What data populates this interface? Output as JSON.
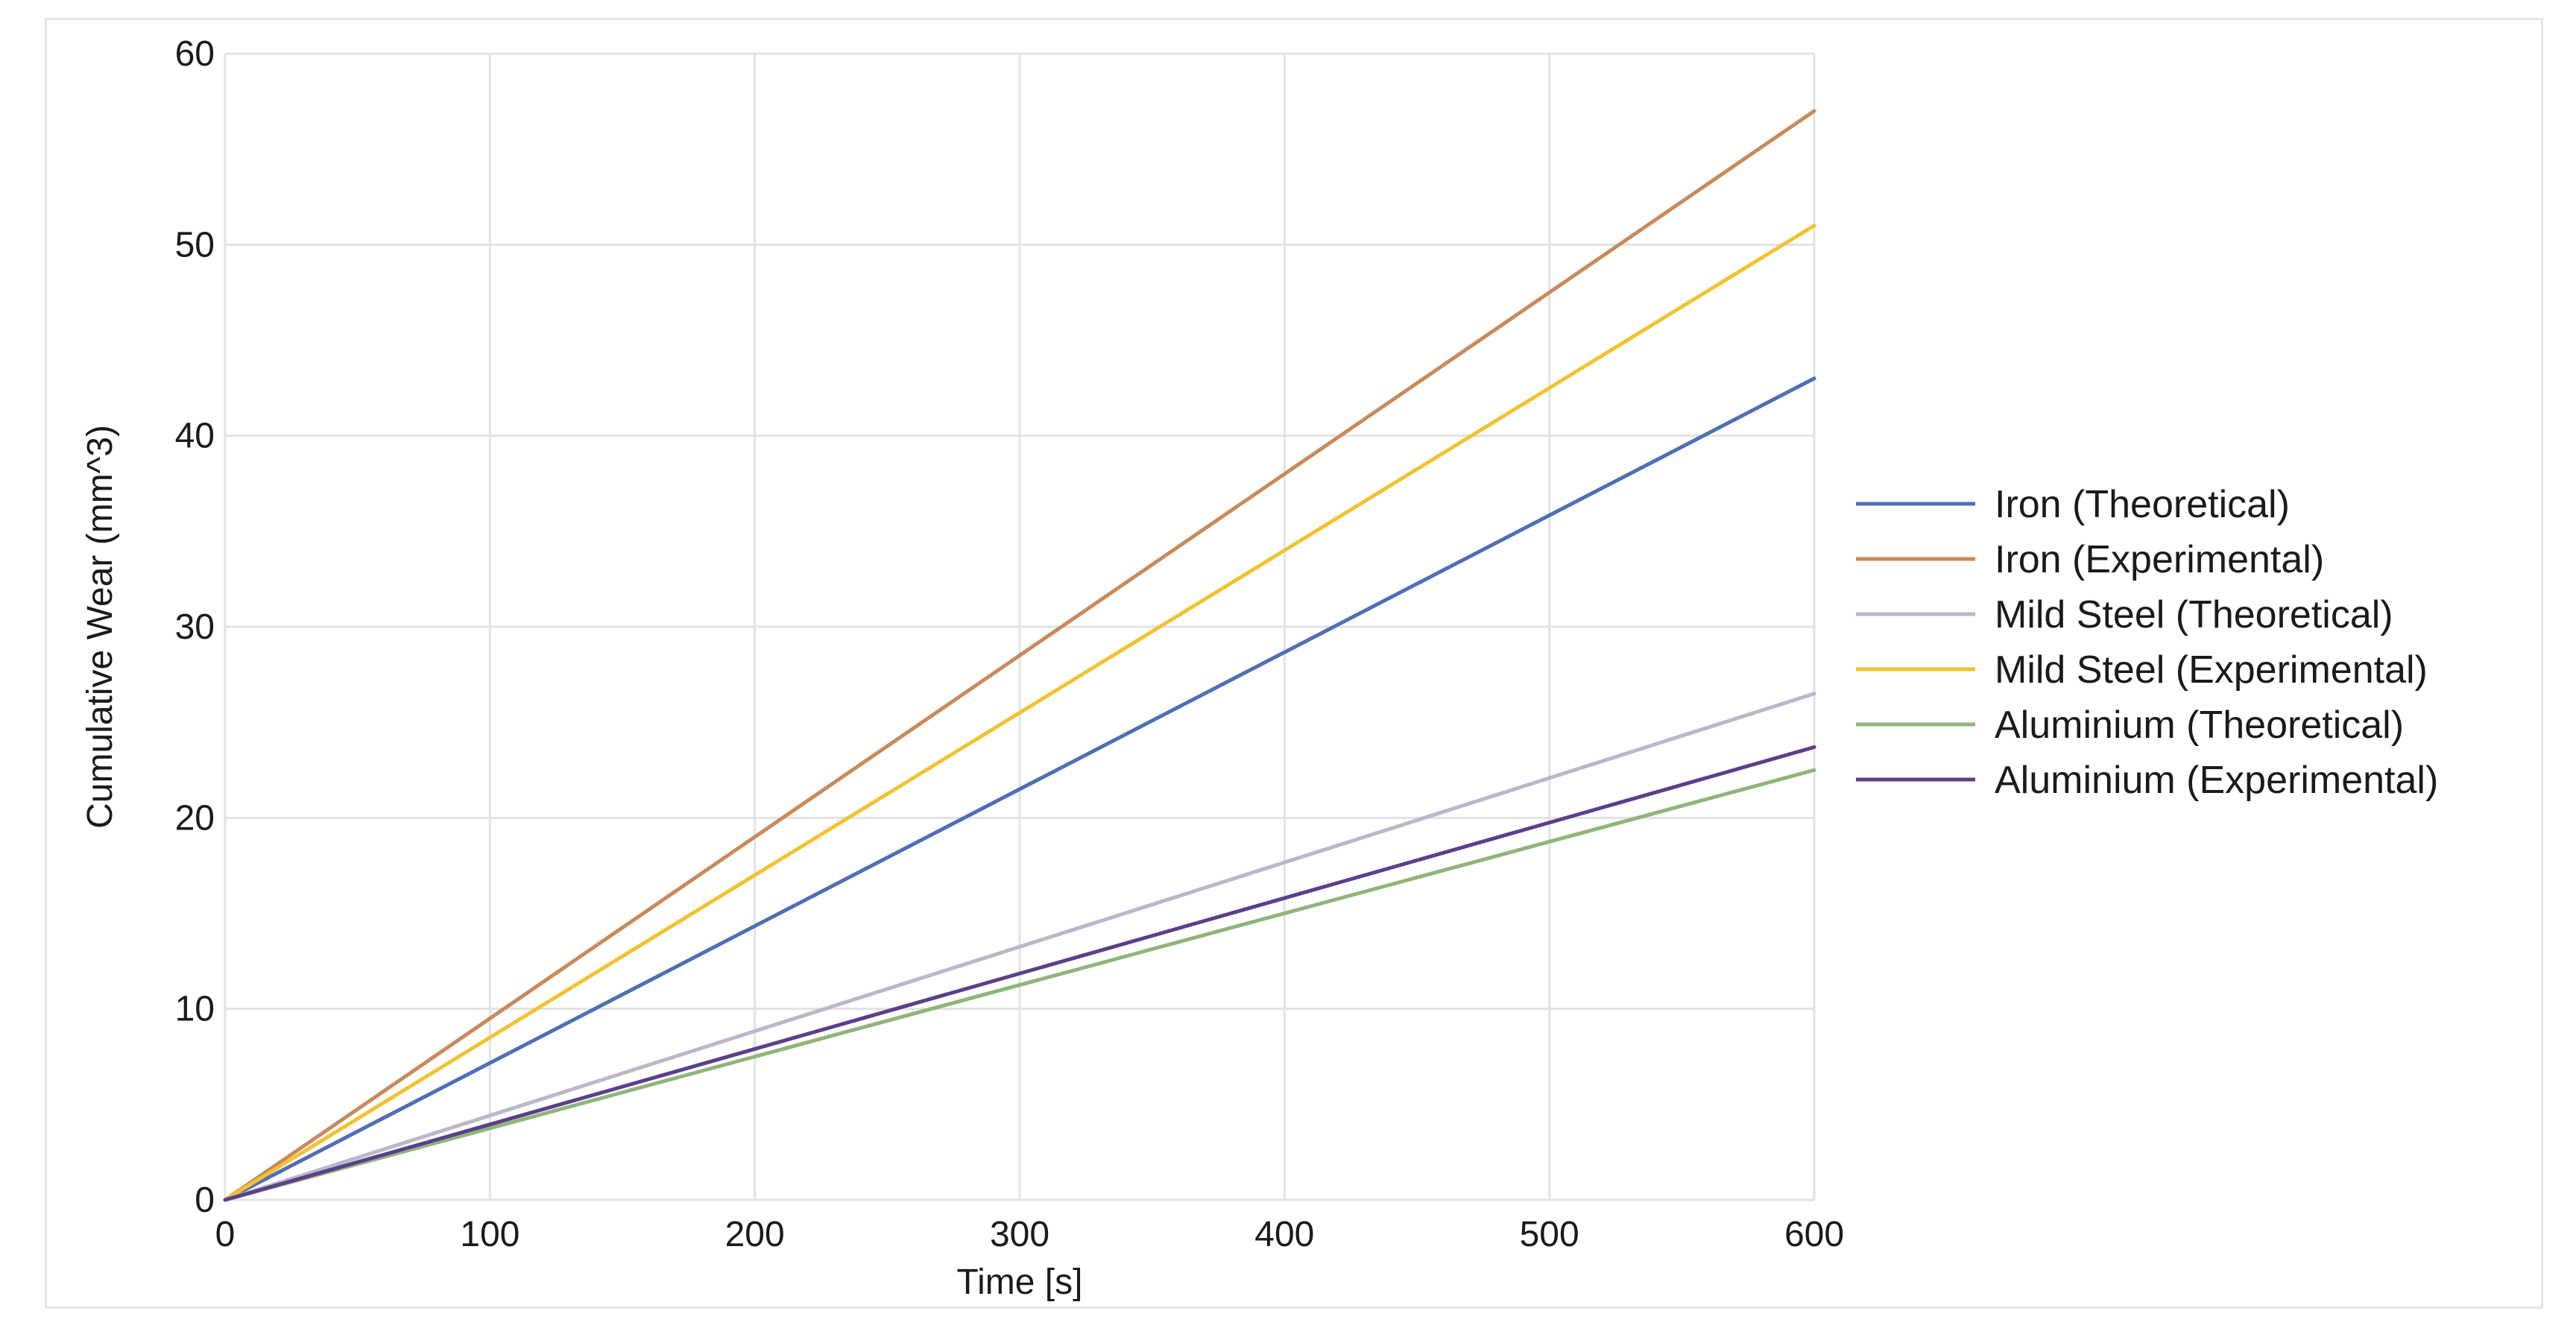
{
  "chart_data": {
    "type": "line",
    "title": "",
    "xlabel": "Time [s]",
    "ylabel": "Cumulative Wear (mm^3)",
    "xlim": [
      0,
      600
    ],
    "ylim": [
      0,
      60
    ],
    "xticks": [
      0,
      100,
      200,
      300,
      400,
      500,
      600
    ],
    "yticks": [
      0,
      10,
      20,
      30,
      40,
      50,
      60
    ],
    "xtick_labels": [
      "0",
      "100",
      "200",
      "300",
      "400",
      "500",
      "600"
    ],
    "ytick_labels": [
      "0",
      "10",
      "20",
      "30",
      "40",
      "50",
      "60"
    ],
    "grid": true,
    "legend_position": "right",
    "series": [
      {
        "name": "Iron (Theoretical)",
        "color": "#4f6fb5",
        "points": [
          [
            0,
            0
          ],
          [
            600,
            43
          ]
        ]
      },
      {
        "name": "Iron (Experimental)",
        "color": "#c98a5b",
        "points": [
          [
            0,
            0
          ],
          [
            600,
            57
          ]
        ]
      },
      {
        "name": "Mild Steel (Theoretical)",
        "color": "#b8b8c8",
        "points": [
          [
            0,
            0
          ],
          [
            600,
            26.5
          ]
        ]
      },
      {
        "name": "Mild Steel (Experimental)",
        "color": "#f2c230",
        "points": [
          [
            0,
            0
          ],
          [
            600,
            51
          ]
        ]
      },
      {
        "name": "Aluminium (Theoretical)",
        "color": "#8fb57a",
        "points": [
          [
            0,
            0
          ],
          [
            600,
            22.5
          ]
        ]
      },
      {
        "name": "Aluminium (Experimental)",
        "color": "#5a3f8a",
        "points": [
          [
            0,
            0
          ],
          [
            600,
            23.7
          ]
        ]
      }
    ]
  }
}
